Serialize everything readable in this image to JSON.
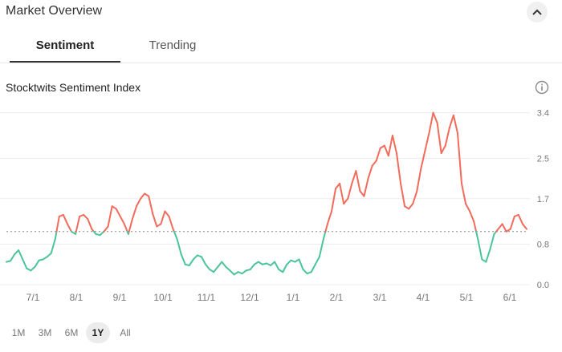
{
  "header": {
    "title": "Market Overview",
    "collapse_icon": "chevron-up-icon"
  },
  "tabs": [
    {
      "label": "Sentiment",
      "active": true
    },
    {
      "label": "Trending",
      "active": false
    }
  ],
  "chart_panel": {
    "title": "Stocktwits Sentiment Index",
    "info_icon": "info-icon"
  },
  "range_buttons": [
    {
      "label": "1M",
      "active": false
    },
    {
      "label": "3M",
      "active": false
    },
    {
      "label": "6M",
      "active": false
    },
    {
      "label": "1Y",
      "active": true
    },
    {
      "label": "All",
      "active": false
    }
  ],
  "chart_data": {
    "type": "line",
    "xlabel": "",
    "ylabel": "",
    "x_tick_labels": [
      "7/1",
      "8/1",
      "9/1",
      "10/1",
      "11/1",
      "12/1",
      "1/1",
      "2/1",
      "3/1",
      "4/1",
      "5/1",
      "6/1"
    ],
    "y_tick_labels": [
      "3.4",
      "2.5",
      "1.7",
      "0.8",
      "0.0"
    ],
    "y_tick_values": [
      3.4,
      2.5,
      1.7,
      0.8,
      0.0
    ],
    "ylim": [
      0,
      3.6
    ],
    "threshold": 1.05,
    "colors": {
      "above": "#f26b5b",
      "below": "#4bc49a",
      "threshold": "#888888",
      "grid": "#ececec",
      "axis_text": "#777777"
    },
    "x_start": "6/17",
    "series": [
      {
        "values": [
          0.45,
          0.47,
          0.6,
          0.68,
          0.5,
          0.32,
          0.28,
          0.35,
          0.48,
          0.5,
          0.55,
          0.62,
          0.9,
          1.35,
          1.38,
          1.2,
          1.05,
          1.0,
          1.35,
          1.38,
          1.3,
          1.1,
          1.0,
          0.98,
          1.05,
          1.15,
          1.55,
          1.5,
          1.35,
          1.2,
          1.0,
          1.3,
          1.55,
          1.7,
          1.8,
          1.75,
          1.4,
          1.15,
          1.2,
          1.45,
          1.35,
          1.1,
          0.9,
          0.6,
          0.4,
          0.38,
          0.5,
          0.58,
          0.55,
          0.4,
          0.3,
          0.25,
          0.35,
          0.45,
          0.35,
          0.28,
          0.2,
          0.25,
          0.22,
          0.28,
          0.3,
          0.4,
          0.45,
          0.4,
          0.42,
          0.38,
          0.45,
          0.3,
          0.25,
          0.4,
          0.48,
          0.45,
          0.5,
          0.3,
          0.22,
          0.25,
          0.4,
          0.55,
          0.9,
          1.2,
          1.45,
          1.9,
          2.0,
          1.6,
          1.7,
          2.0,
          2.25,
          1.85,
          1.75,
          2.1,
          2.35,
          2.45,
          2.7,
          2.75,
          2.55,
          2.95,
          2.6,
          2.0,
          1.55,
          1.5,
          1.6,
          1.85,
          2.3,
          2.65,
          3.0,
          3.4,
          3.2,
          2.6,
          2.75,
          3.1,
          3.35,
          3.0,
          2.0,
          1.6,
          1.45,
          1.25,
          0.9,
          0.5,
          0.45,
          0.7,
          1.0,
          1.1,
          1.2,
          1.05,
          1.1,
          1.35,
          1.38,
          1.2,
          1.1
        ]
      }
    ]
  }
}
